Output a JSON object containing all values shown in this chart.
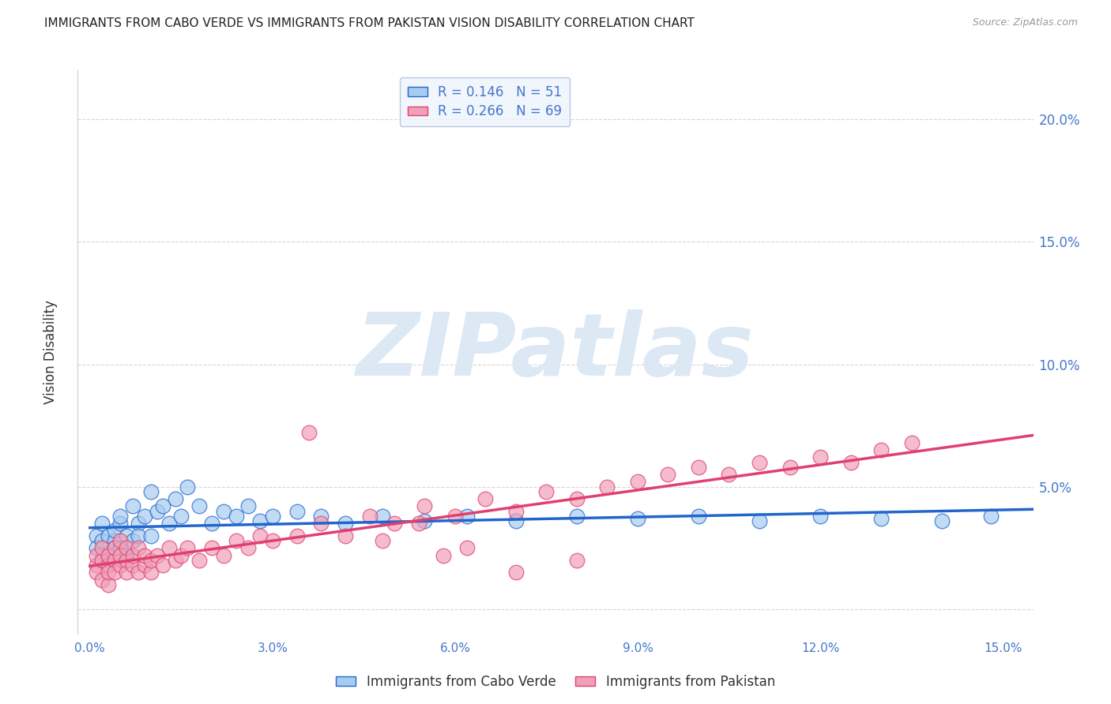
{
  "title": "IMMIGRANTS FROM CABO VERDE VS IMMIGRANTS FROM PAKISTAN VISION DISABILITY CORRELATION CHART",
  "source": "Source: ZipAtlas.com",
  "ylabel": "Vision Disability",
  "xlabel": "",
  "xlim": [
    -0.002,
    0.155
  ],
  "ylim": [
    -0.01,
    0.22
  ],
  "yticks": [
    0.0,
    0.05,
    0.1,
    0.15,
    0.2
  ],
  "ytick_labels": [
    "",
    "5.0%",
    "10.0%",
    "15.0%",
    "20.0%"
  ],
  "xticks": [
    0.0,
    0.03,
    0.06,
    0.09,
    0.12,
    0.15
  ],
  "xtick_labels": [
    "0.0%",
    "3.0%",
    "6.0%",
    "9.0%",
    "12.0%",
    "15.0%"
  ],
  "series1_label": "Immigrants from Cabo Verde",
  "series1_R": 0.146,
  "series1_N": 51,
  "series1_color": "#a8ccf0",
  "series1_line_color": "#2266cc",
  "series2_label": "Immigrants from Pakistan",
  "series2_R": 0.266,
  "series2_N": 69,
  "series2_color": "#f0a0b8",
  "series2_line_color": "#e04070",
  "watermark": "ZIPatlas",
  "watermark_color": "#dde8f5",
  "background_color": "#ffffff",
  "grid_color": "#cccccc",
  "title_color": "#222222",
  "axis_label_color": "#333333",
  "tick_color": "#4477cc",
  "legend_box_color": "#eef3fc",
  "legend_box_edge": "#aabbdd",
  "title_fontsize": 11,
  "source_fontsize": 9,
  "cabo_verde_x": [
    0.001,
    0.001,
    0.002,
    0.002,
    0.002,
    0.003,
    0.003,
    0.003,
    0.004,
    0.004,
    0.004,
    0.005,
    0.005,
    0.005,
    0.006,
    0.006,
    0.007,
    0.007,
    0.008,
    0.008,
    0.009,
    0.01,
    0.01,
    0.011,
    0.012,
    0.013,
    0.014,
    0.015,
    0.016,
    0.018,
    0.02,
    0.022,
    0.024,
    0.026,
    0.028,
    0.03,
    0.034,
    0.038,
    0.042,
    0.048,
    0.055,
    0.062,
    0.07,
    0.08,
    0.09,
    0.1,
    0.11,
    0.12,
    0.13,
    0.14,
    0.148
  ],
  "cabo_verde_y": [
    0.03,
    0.025,
    0.02,
    0.035,
    0.028,
    0.022,
    0.03,
    0.018,
    0.028,
    0.032,
    0.025,
    0.035,
    0.025,
    0.038,
    0.03,
    0.022,
    0.042,
    0.028,
    0.035,
    0.03,
    0.038,
    0.03,
    0.048,
    0.04,
    0.042,
    0.035,
    0.045,
    0.038,
    0.05,
    0.042,
    0.035,
    0.04,
    0.038,
    0.042,
    0.036,
    0.038,
    0.04,
    0.038,
    0.035,
    0.038,
    0.036,
    0.038,
    0.036,
    0.038,
    0.037,
    0.038,
    0.036,
    0.038,
    0.037,
    0.036,
    0.038
  ],
  "pakistan_x": [
    0.001,
    0.001,
    0.001,
    0.002,
    0.002,
    0.002,
    0.003,
    0.003,
    0.003,
    0.003,
    0.004,
    0.004,
    0.004,
    0.005,
    0.005,
    0.005,
    0.006,
    0.006,
    0.006,
    0.007,
    0.007,
    0.008,
    0.008,
    0.009,
    0.009,
    0.01,
    0.01,
    0.011,
    0.012,
    0.013,
    0.014,
    0.015,
    0.016,
    0.018,
    0.02,
    0.022,
    0.024,
    0.026,
    0.028,
    0.03,
    0.034,
    0.038,
    0.042,
    0.046,
    0.05,
    0.055,
    0.06,
    0.065,
    0.07,
    0.075,
    0.08,
    0.085,
    0.09,
    0.095,
    0.1,
    0.105,
    0.11,
    0.115,
    0.12,
    0.125,
    0.13,
    0.135,
    0.036,
    0.048,
    0.054,
    0.058,
    0.062,
    0.07,
    0.08
  ],
  "pakistan_y": [
    0.018,
    0.022,
    0.015,
    0.02,
    0.012,
    0.025,
    0.018,
    0.01,
    0.022,
    0.015,
    0.02,
    0.015,
    0.025,
    0.018,
    0.022,
    0.028,
    0.015,
    0.02,
    0.025,
    0.018,
    0.022,
    0.015,
    0.025,
    0.018,
    0.022,
    0.015,
    0.02,
    0.022,
    0.018,
    0.025,
    0.02,
    0.022,
    0.025,
    0.02,
    0.025,
    0.022,
    0.028,
    0.025,
    0.03,
    0.028,
    0.03,
    0.035,
    0.03,
    0.038,
    0.035,
    0.042,
    0.038,
    0.045,
    0.04,
    0.048,
    0.045,
    0.05,
    0.052,
    0.055,
    0.058,
    0.055,
    0.06,
    0.058,
    0.062,
    0.06,
    0.065,
    0.068,
    0.072,
    0.028,
    0.035,
    0.022,
    0.025,
    0.015,
    0.02
  ]
}
